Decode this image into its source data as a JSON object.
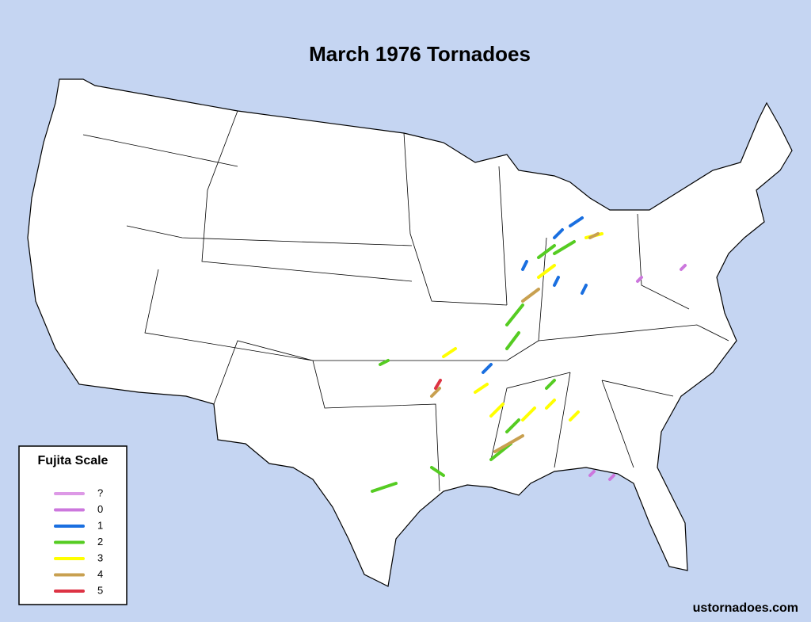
{
  "title": "March 1976 Tornadoes",
  "legend": {
    "title": "Fujita Scale",
    "items": [
      {
        "label": "?",
        "color": "#dd99e6"
      },
      {
        "label": "0",
        "color": "#cc77dd"
      },
      {
        "label": "1",
        "color": "#1a6fe0"
      },
      {
        "label": "2",
        "color": "#55cc22"
      },
      {
        "label": "3",
        "color": "#ffff00"
      },
      {
        "label": "4",
        "color": "#c8a050"
      },
      {
        "label": "5",
        "color": "#dd3344"
      }
    ]
  },
  "footer": "ustornadoes.com"
}
